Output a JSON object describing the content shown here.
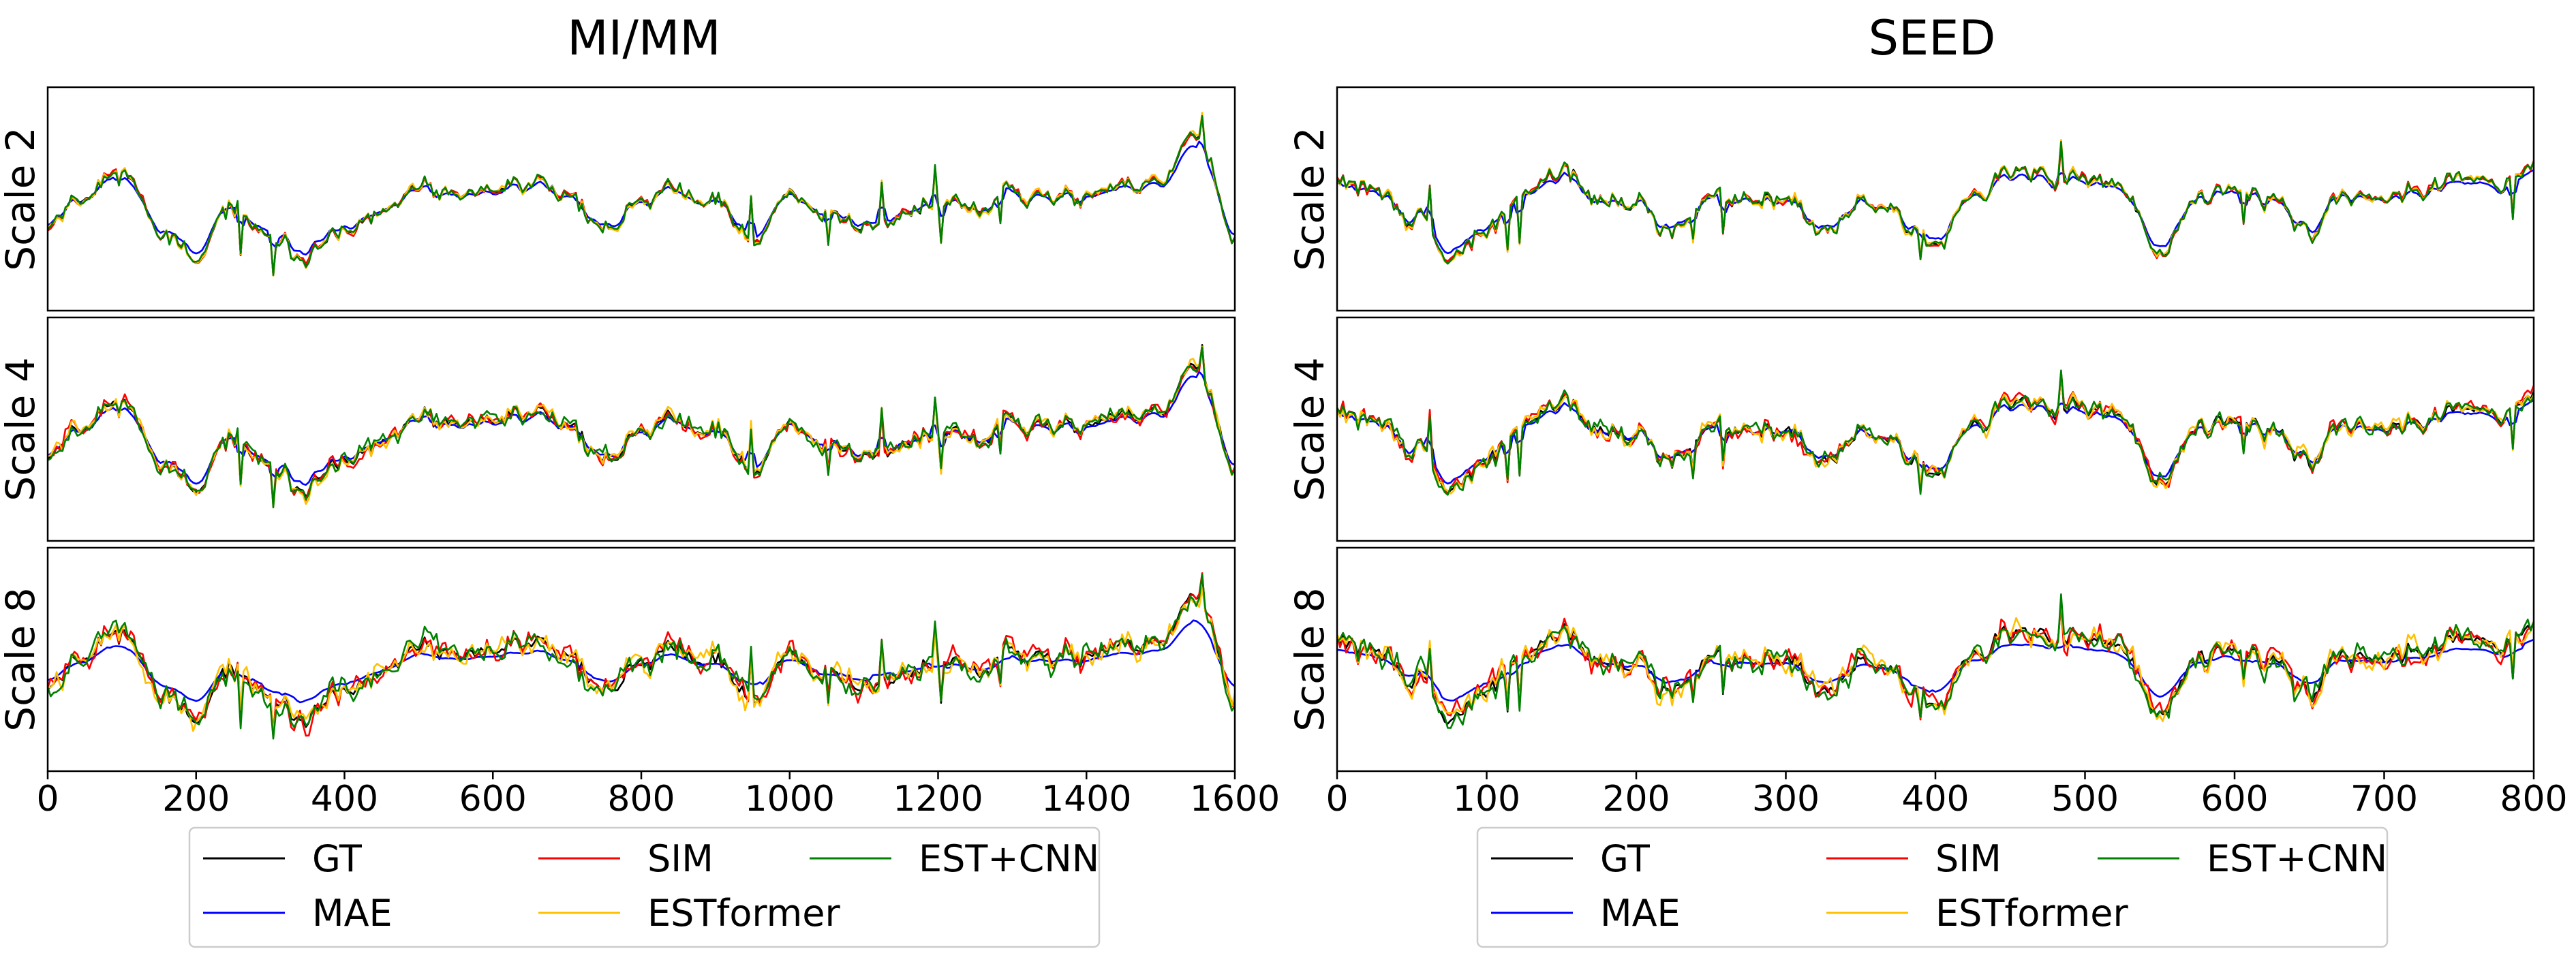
{
  "chart_data": [
    {
      "type": "line",
      "title": "MI/MM",
      "xlim": [
        0,
        1600
      ],
      "xticks": [
        "0",
        "200",
        "400",
        "600",
        "800",
        "1000",
        "1200",
        "1400",
        "1600"
      ],
      "rows": [
        "Scale 2",
        "Scale 4",
        "Scale 8"
      ],
      "series": [
        {
          "name": "GT",
          "color": "#000000"
        },
        {
          "name": "MAE",
          "color": "#0000ff"
        },
        {
          "name": "SIM",
          "color": "#ff0000"
        },
        {
          "name": "ESTformer",
          "color": "#ffc000"
        },
        {
          "name": "EST+CNN",
          "color": "#008000"
        }
      ],
      "grid": false,
      "legend": "bottom",
      "x": [
        0,
        50,
        100,
        150,
        200,
        250,
        300,
        350,
        400,
        450,
        500,
        550,
        600,
        650,
        700,
        750,
        800,
        850,
        900,
        950,
        1000,
        1050,
        1100,
        1150,
        1200,
        1250,
        1300,
        1350,
        1400,
        1450,
        1500,
        1550,
        1600
      ],
      "gt": [
        0.42,
        0.58,
        0.72,
        0.38,
        0.18,
        0.5,
        0.3,
        0.22,
        0.35,
        0.45,
        0.62,
        0.55,
        0.6,
        0.66,
        0.6,
        0.35,
        0.55,
        0.62,
        0.55,
        0.3,
        0.6,
        0.45,
        0.4,
        0.45,
        0.52,
        0.48,
        0.6,
        0.55,
        0.58,
        0.62,
        0.65,
        0.9,
        0.32
      ]
    },
    {
      "type": "line",
      "title": "SEED",
      "xlim": [
        0,
        800
      ],
      "xticks": [
        "0",
        "100",
        "200",
        "300",
        "400",
        "500",
        "600",
        "700",
        "800"
      ],
      "rows": [
        "Scale 2",
        "Scale 4",
        "Scale 8"
      ],
      "series": [
        {
          "name": "GT",
          "color": "#000000"
        },
        {
          "name": "MAE",
          "color": "#0000ff"
        },
        {
          "name": "SIM",
          "color": "#ff0000"
        },
        {
          "name": "ESTformer",
          "color": "#ffc000"
        },
        {
          "name": "EST+CNN",
          "color": "#008000"
        }
      ],
      "grid": false,
      "legend": "bottom",
      "x": [
        0,
        25,
        50,
        75,
        100,
        125,
        150,
        175,
        200,
        225,
        250,
        275,
        300,
        325,
        350,
        375,
        400,
        425,
        450,
        475,
        500,
        525,
        550,
        575,
        600,
        625,
        650,
        675,
        700,
        725,
        750,
        775,
        800
      ],
      "gt": [
        0.65,
        0.6,
        0.45,
        0.2,
        0.35,
        0.6,
        0.72,
        0.55,
        0.5,
        0.35,
        0.6,
        0.55,
        0.55,
        0.35,
        0.55,
        0.45,
        0.3,
        0.6,
        0.7,
        0.7,
        0.65,
        0.6,
        0.25,
        0.55,
        0.6,
        0.55,
        0.35,
        0.6,
        0.55,
        0.6,
        0.7,
        0.6,
        0.72
      ]
    }
  ],
  "legend_labels": [
    "GT",
    "MAE",
    "SIM",
    "ESTformer",
    "EST+CNN"
  ]
}
